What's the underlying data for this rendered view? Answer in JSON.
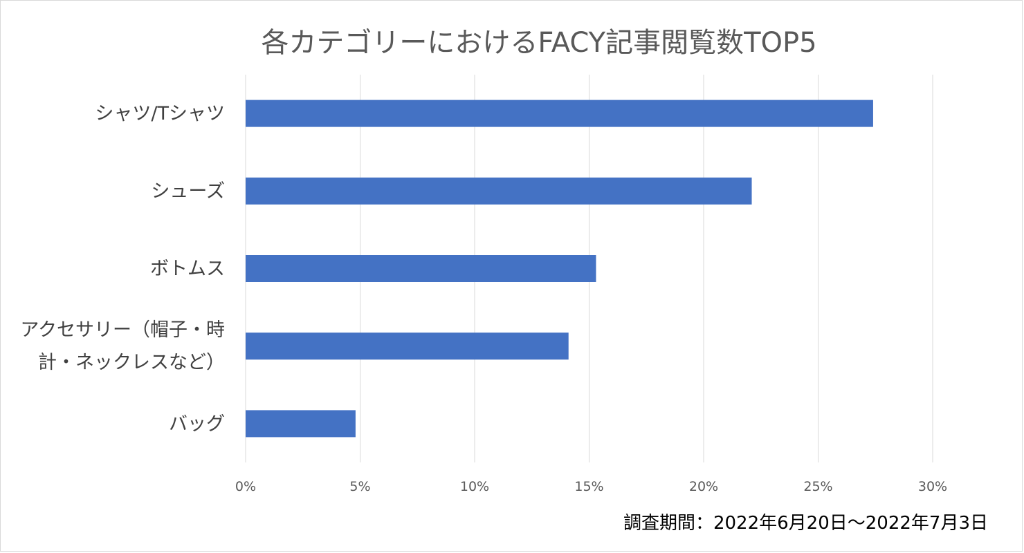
{
  "chart_data": {
    "type": "bar",
    "orientation": "horizontal",
    "title": "各カテゴリーにおけるFACY記事閲覧数TOP5",
    "categories": [
      "シャツ/Tシャツ",
      "シューズ",
      "ボトムス",
      "アクセサリー（帽子・時計・ネックレスなど）",
      "バッグ"
    ],
    "category_label_lines": [
      [
        "シャツ/Tシャツ"
      ],
      [
        "シューズ"
      ],
      [
        "ボトムス"
      ],
      [
        "アクセサリー（帽子・時",
        "計・ネックレスなど）"
      ],
      [
        "バッグ"
      ]
    ],
    "values": [
      27.4,
      22.1,
      15.3,
      14.1,
      4.8
    ],
    "value_unit": "%",
    "xlim": [
      0,
      30
    ],
    "x_ticks": [
      0,
      5,
      10,
      15,
      20,
      25,
      30
    ],
    "x_tick_labels": [
      "0%",
      "5%",
      "10%",
      "15%",
      "20%",
      "25%",
      "30%"
    ],
    "grid": true,
    "legend": "none",
    "bar_color": "#4472c4",
    "footnote": "調査期間：2022年6月20日～2022年7月3日"
  }
}
